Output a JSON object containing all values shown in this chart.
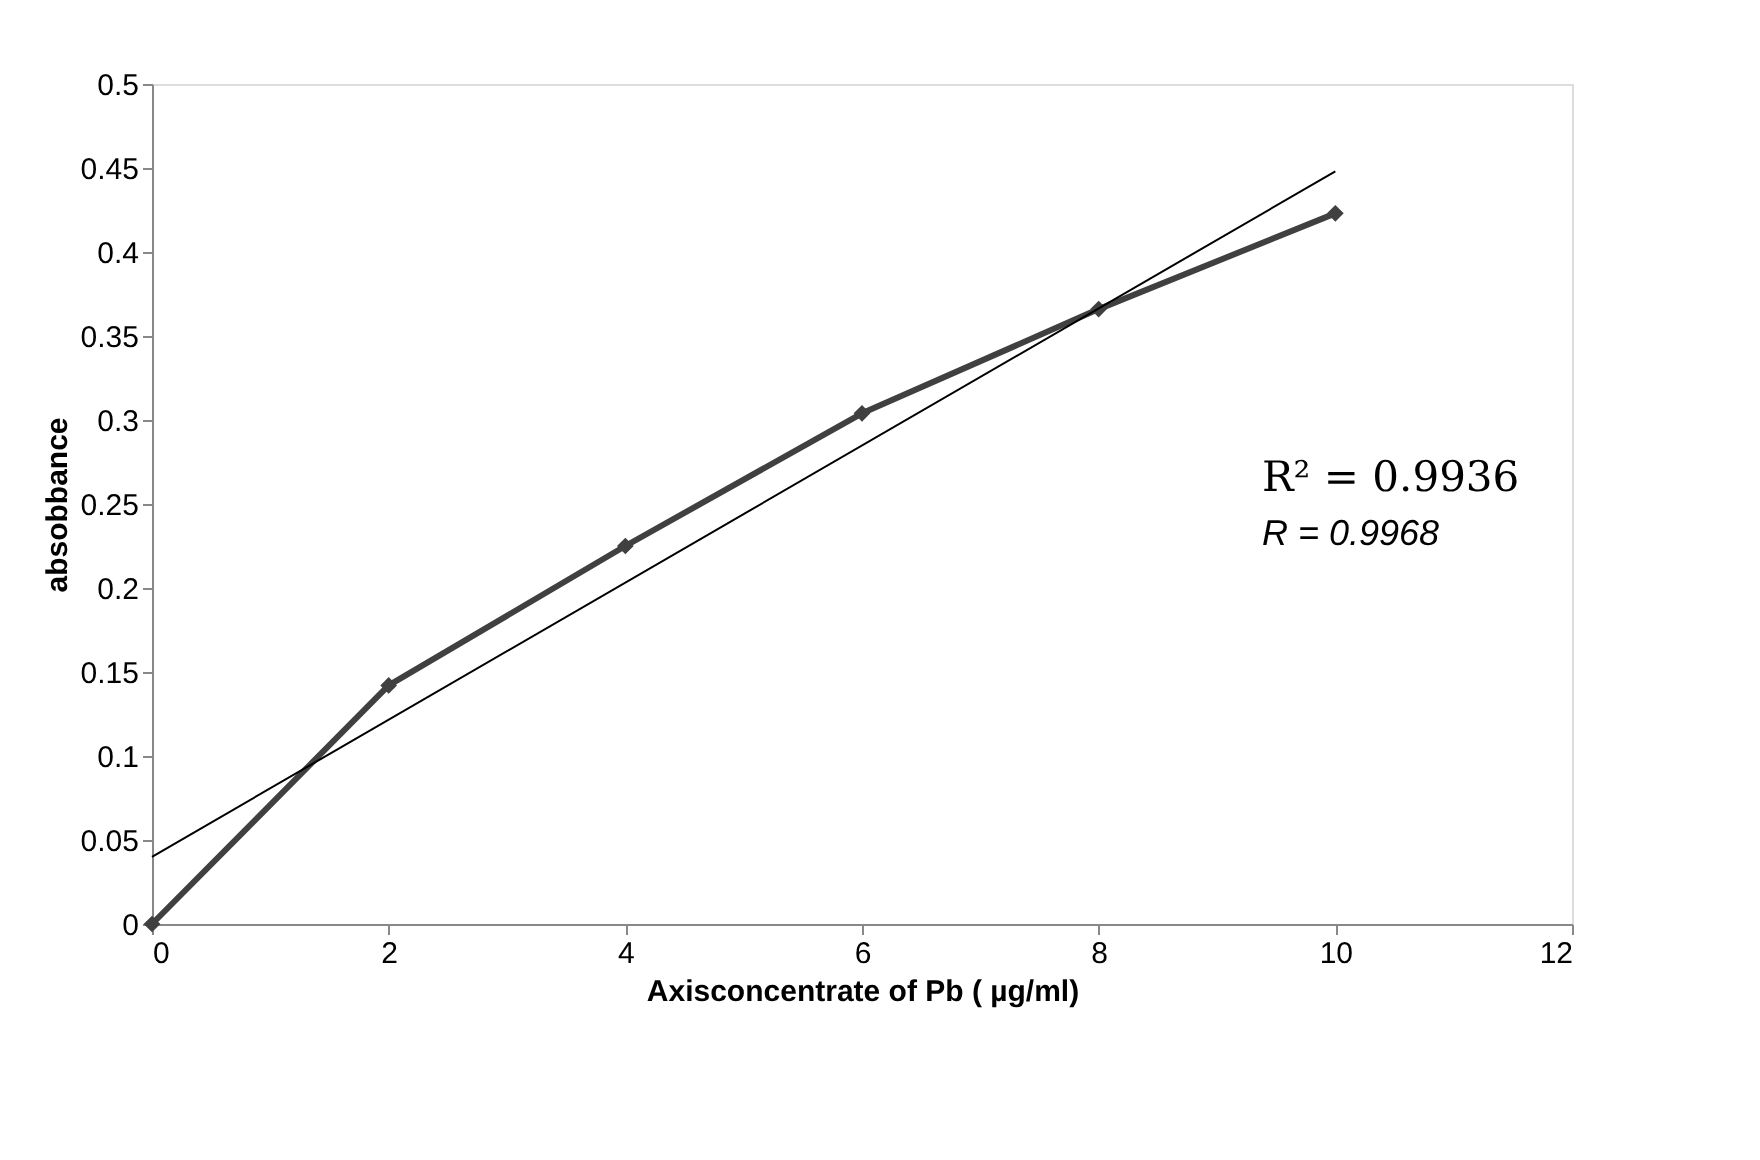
{
  "chart_data": {
    "type": "line",
    "xlabel": "Axisconcentrate of Pb ( µg/ml)",
    "ylabel": "absobbance",
    "xlim": [
      0,
      12
    ],
    "xticks": [
      0,
      2,
      4,
      6,
      8,
      10,
      12
    ],
    "ylim": [
      0,
      0.5
    ],
    "yticks": [
      0,
      0.05,
      0.1,
      0.15,
      0.2,
      0.25,
      0.3,
      0.35,
      0.4,
      0.45,
      0.5
    ],
    "grid": false,
    "series": [
      {
        "color": "#404040",
        "marker": "diamond",
        "line_style": "solid",
        "x": [
          0,
          2,
          4,
          6,
          8,
          10
        ],
        "values": [
          0,
          0.142,
          0.225,
          0.304,
          0.366,
          0.423
        ]
      },
      {
        "color": "#000000",
        "marker": "none",
        "line_style": "solid",
        "x": [
          0,
          10
        ],
        "values": [
          0.04,
          0.448
        ]
      }
    ],
    "annotations": [
      "R² = 0.9936",
      "R = 0.9968"
    ]
  }
}
